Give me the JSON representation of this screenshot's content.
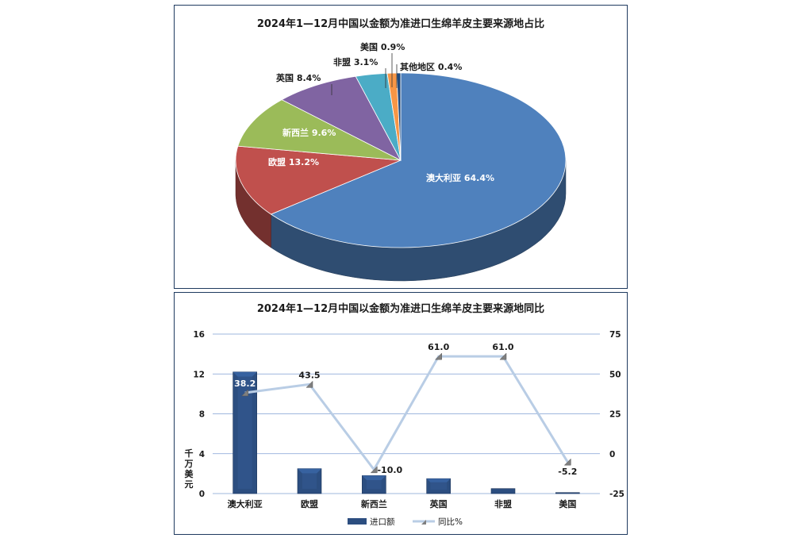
{
  "chart_data": [
    {
      "type": "pie",
      "title": "2024年1—12月中国以金额为准进口生绵羊皮主要来源地占比",
      "slices": [
        {
          "label": "澳大利亚",
          "value": 64.4,
          "display": "64.4%",
          "color": "#4f81bd"
        },
        {
          "label": "欧盟",
          "value": 13.2,
          "display": "13.2%",
          "color": "#c0504d"
        },
        {
          "label": "新西兰",
          "value": 9.6,
          "display": "9.6%",
          "color": "#9bbb59"
        },
        {
          "label": "英国",
          "value": 8.4,
          "display": "8.4%",
          "color": "#8064a2"
        },
        {
          "label": "非盟",
          "value": 3.1,
          "display": "3.1%",
          "color": "#4bacc6"
        },
        {
          "label": "美国",
          "value": 0.9,
          "display": "0.9%",
          "color": "#f79646"
        },
        {
          "label": "其他地区",
          "value": 0.4,
          "display": "0.4%",
          "color": "#1f497d"
        }
      ]
    },
    {
      "type": "bar",
      "title": "2024年1—12月中国以金额为准进口生绵羊皮主要来源地同比",
      "categories": [
        "澳大利亚",
        "欧盟",
        "新西兰",
        "英国",
        "非盟",
        "美国"
      ],
      "ylabel": "千万美元",
      "ylim": [
        0,
        16
      ],
      "yticks": [
        0,
        4,
        8,
        12,
        16
      ],
      "y2lim": [
        -25,
        75
      ],
      "y2ticks": [
        -25,
        0,
        25,
        50,
        75
      ],
      "series": [
        {
          "name": "进口额",
          "type": "bar",
          "axis": "left",
          "color": "#2c4e80",
          "values": [
            12.2,
            2.5,
            1.8,
            1.5,
            0.5,
            0.1
          ]
        },
        {
          "name": "同比%",
          "type": "line",
          "axis": "right",
          "color": "#b9cde5",
          "values": [
            38.2,
            43.5,
            -10.0,
            61.0,
            61.0,
            -5.2
          ],
          "labels": [
            "38.2",
            "43.5",
            "-10.0",
            "61.0",
            "61.0",
            "-5.2"
          ]
        }
      ],
      "grid": true,
      "legend": "bottom"
    }
  ]
}
